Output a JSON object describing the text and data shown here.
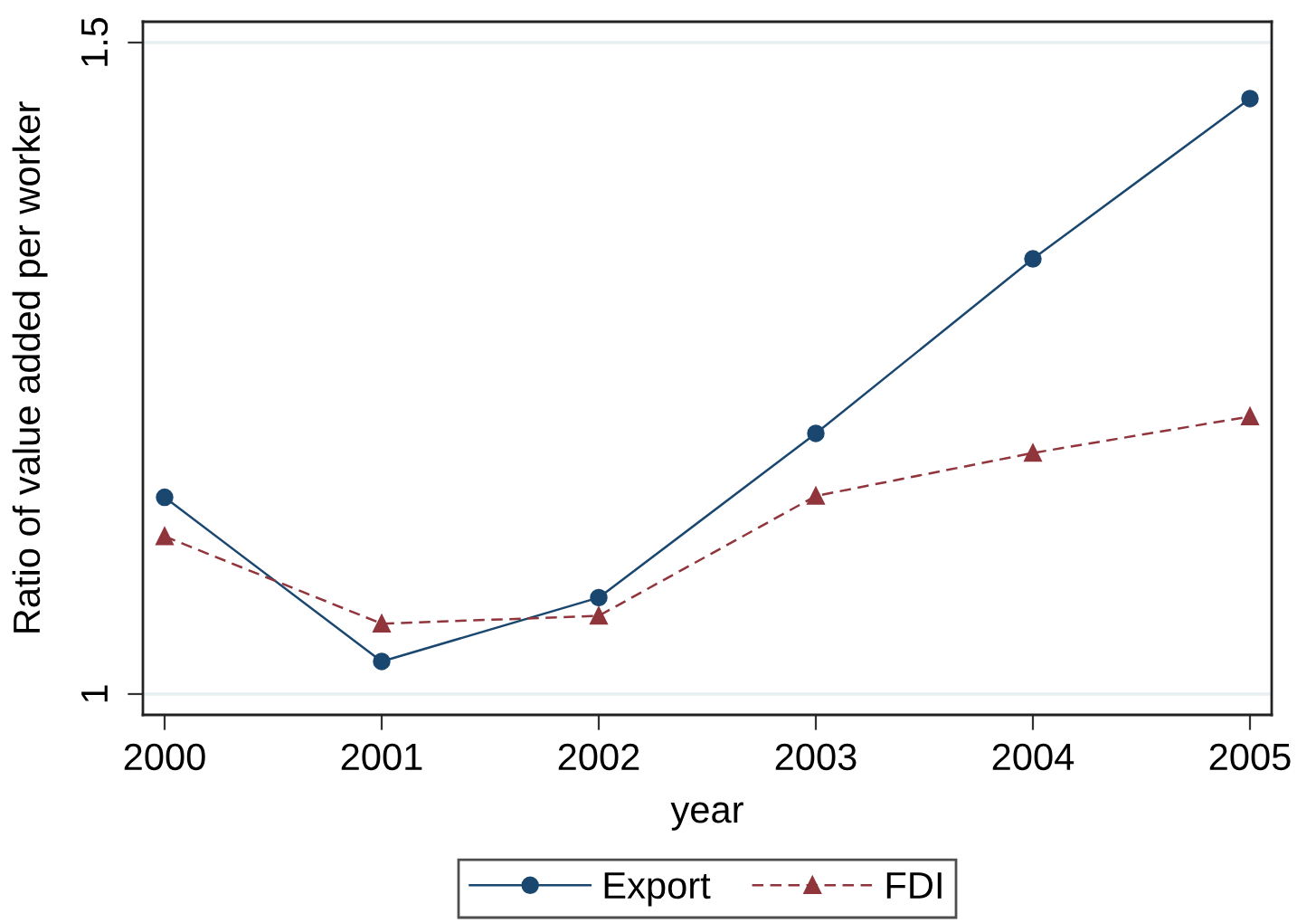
{
  "chart_data": {
    "type": "line",
    "xlabel": "year",
    "ylabel": "Ratio of value added per worker",
    "x": [
      2000,
      2001,
      2002,
      2003,
      2004,
      2005
    ],
    "series": [
      {
        "name": "Export",
        "color": "#1a476f",
        "marker": "circle",
        "line_style": "solid",
        "values": [
          1.151,
          1.025,
          1.074,
          1.2,
          1.334,
          1.457
        ]
      },
      {
        "name": "FDI",
        "color": "#90353b",
        "marker": "triangle",
        "line_style": "dashed",
        "values": [
          1.121,
          1.054,
          1.06,
          1.152,
          1.185,
          1.213
        ]
      }
    ],
    "xlim": [
      1999.9,
      2005.1
    ],
    "ylim": [
      0.984,
      1.516
    ],
    "xticks": [
      2000,
      2001,
      2002,
      2003,
      2004,
      2005
    ],
    "yticks": [
      1,
      1.5
    ],
    "grid": "y",
    "legend": "bottom"
  }
}
